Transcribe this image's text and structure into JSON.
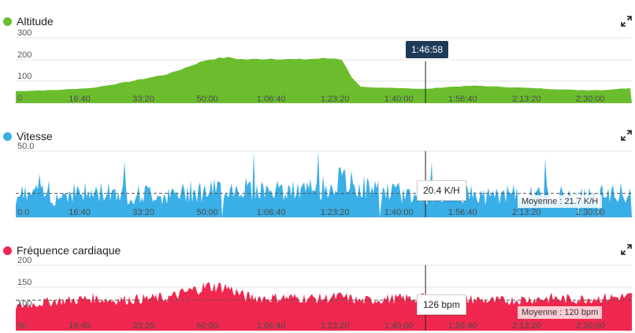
{
  "cursor": {
    "time_label": "1:46:58",
    "time_s": 6418
  },
  "x_ticks": [
    "16:40",
    "33:20",
    "50:00",
    "1:06:40",
    "1:23:20",
    "1:40:00",
    "1:56:40",
    "2:13:20",
    "2:30:00"
  ],
  "x_tick_seconds": [
    1000,
    2000,
    3000,
    4000,
    5000,
    6000,
    7000,
    8000,
    9000
  ],
  "x_max_s": 9650,
  "panels": [
    {
      "id": "altitude",
      "title": "Altitude",
      "color": "#6bbd2e",
      "expand_icon": "expand-icon",
      "y_ticks": [
        "300",
        "200",
        "100",
        "0"
      ],
      "value_tag": "",
      "average_tag": ""
    },
    {
      "id": "speed",
      "title": "Vitesse",
      "color": "#3aaee6",
      "expand_icon": "expand-icon",
      "y_ticks": [
        "50.0",
        "0.0"
      ],
      "value_tag": "20.4 K/H",
      "average_tag": "Moyenne : 21.7 K/H"
    },
    {
      "id": "heart",
      "title": "Fréquence cardiaque",
      "color": "#f0284f",
      "expand_icon": "expand-icon",
      "y_ticks": [
        "200",
        "150",
        "100",
        "50"
      ],
      "value_tag": "126 bpm",
      "average_tag": "Moyenne : 120 bpm"
    }
  ],
  "chart_data": [
    {
      "type": "area",
      "title": "Altitude",
      "ylim": [
        0,
        300
      ],
      "x_unit": "seconds",
      "x": [
        0,
        600,
        1200,
        1800,
        2400,
        3000,
        3300,
        3600,
        4000,
        4400,
        4800,
        5100,
        5250,
        5400,
        5600,
        6000,
        6418,
        6800,
        7200,
        7600,
        8000,
        8400,
        8800,
        9200,
        9650
      ],
      "y": [
        55,
        60,
        70,
        100,
        135,
        200,
        210,
        200,
        205,
        200,
        205,
        205,
        125,
        75,
        70,
        70,
        65,
        75,
        80,
        75,
        70,
        65,
        60,
        60,
        70
      ]
    },
    {
      "type": "area",
      "title": "Vitesse",
      "ylim": [
        0,
        60
      ],
      "average": 21.7,
      "cursor_value": 20.4,
      "x_unit": "seconds",
      "x": [
        0,
        300,
        600,
        900,
        1200,
        1500,
        1800,
        2100,
        2400,
        2700,
        3000,
        3300,
        3600,
        3900,
        4200,
        4500,
        4800,
        5100,
        5400,
        5700,
        6000,
        6300,
        6600,
        6900,
        7200,
        7500,
        7800,
        8100,
        8400,
        8700,
        9000,
        9300,
        9650
      ],
      "y": [
        20,
        22,
        18,
        24,
        21,
        25,
        20,
        22,
        19,
        23,
        24,
        26,
        27,
        25,
        23,
        24,
        27,
        32,
        28,
        24,
        22,
        20,
        21,
        22,
        20,
        19,
        21,
        20,
        22,
        18,
        20,
        21,
        20
      ]
    },
    {
      "type": "area",
      "title": "Fréquence cardiaque",
      "ylim": [
        50,
        200
      ],
      "average": 120,
      "cursor_value": 126,
      "x_unit": "seconds",
      "x": [
        0,
        300,
        600,
        900,
        1200,
        1500,
        1800,
        2100,
        2400,
        2700,
        3000,
        3300,
        3600,
        3900,
        4200,
        4500,
        4800,
        5100,
        5400,
        5700,
        6000,
        6300,
        6600,
        6900,
        7200,
        7500,
        7800,
        8100,
        8400,
        8700,
        9000,
        9300,
        9650
      ],
      "y": [
        105,
        112,
        118,
        120,
        125,
        120,
        122,
        124,
        126,
        140,
        152,
        150,
        128,
        125,
        126,
        125,
        124,
        128,
        118,
        122,
        124,
        125,
        126,
        120,
        122,
        118,
        120,
        123,
        125,
        122,
        124,
        126,
        128
      ]
    }
  ]
}
